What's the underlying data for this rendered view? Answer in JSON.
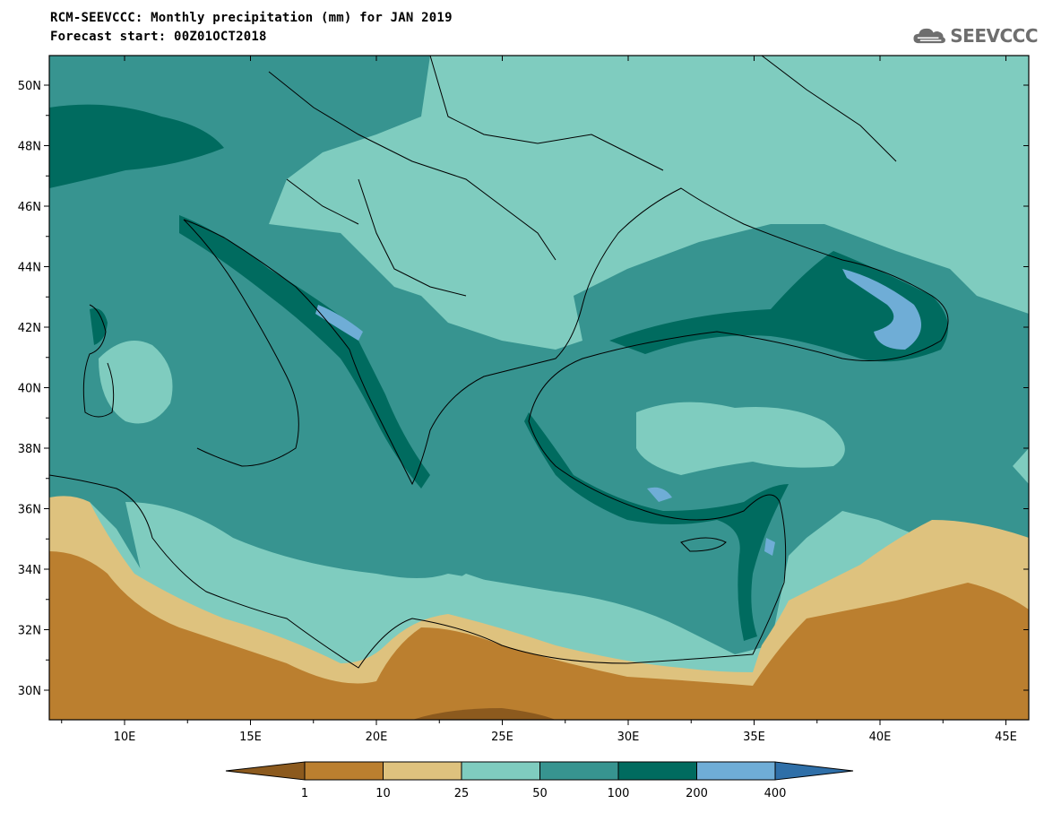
{
  "header": {
    "title_line1": "RCM-SEEVCCC: Monthly precipitation (mm) for JAN 2019",
    "title_line2": "Forecast start: 00Z01OCT2018"
  },
  "logo": {
    "icon": "cloud-icon",
    "text": "SEEVCCC"
  },
  "map": {
    "lat_labels": [
      "50N",
      "48N",
      "46N",
      "44N",
      "42N",
      "40N",
      "38N",
      "36N",
      "34N",
      "32N",
      "30N"
    ],
    "lon_labels": [
      "10E",
      "15E",
      "20E",
      "25E",
      "30E",
      "35E",
      "40E",
      "45E"
    ]
  },
  "colorbar": {
    "labels": [
      "1",
      "10",
      "25",
      "50",
      "100",
      "200",
      "400"
    ],
    "colors": [
      "#8c5a1e",
      "#bb7f2f",
      "#dec27e",
      "#7fccbf",
      "#379490",
      "#006b5f",
      "#6fadd6",
      "#2f6fa8"
    ]
  }
}
